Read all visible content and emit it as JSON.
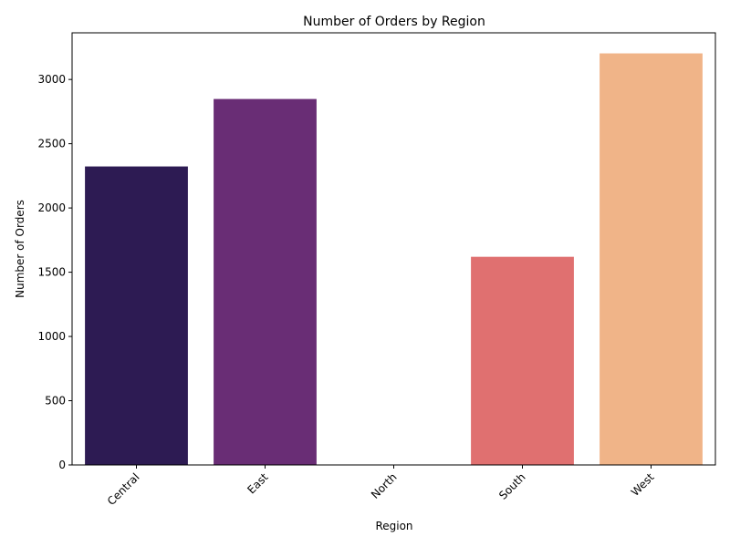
{
  "chart_data": {
    "type": "bar",
    "title": "Number of Orders by Region",
    "xlabel": "Region",
    "ylabel": "Number of Orders",
    "categories": [
      "Central",
      "East",
      "North",
      "South",
      "West"
    ],
    "values": [
      2323,
      2848,
      0,
      1620,
      3203
    ],
    "colors": [
      "#2d1b53",
      "#692d75",
      "#b23b76",
      "#e07070",
      "#f0b488"
    ],
    "yticks": [
      0,
      500,
      1000,
      1500,
      2000,
      2500,
      3000
    ],
    "ylim": [
      0,
      3363
    ],
    "grid": false,
    "legend": "none",
    "xtick_rotation": 45
  }
}
